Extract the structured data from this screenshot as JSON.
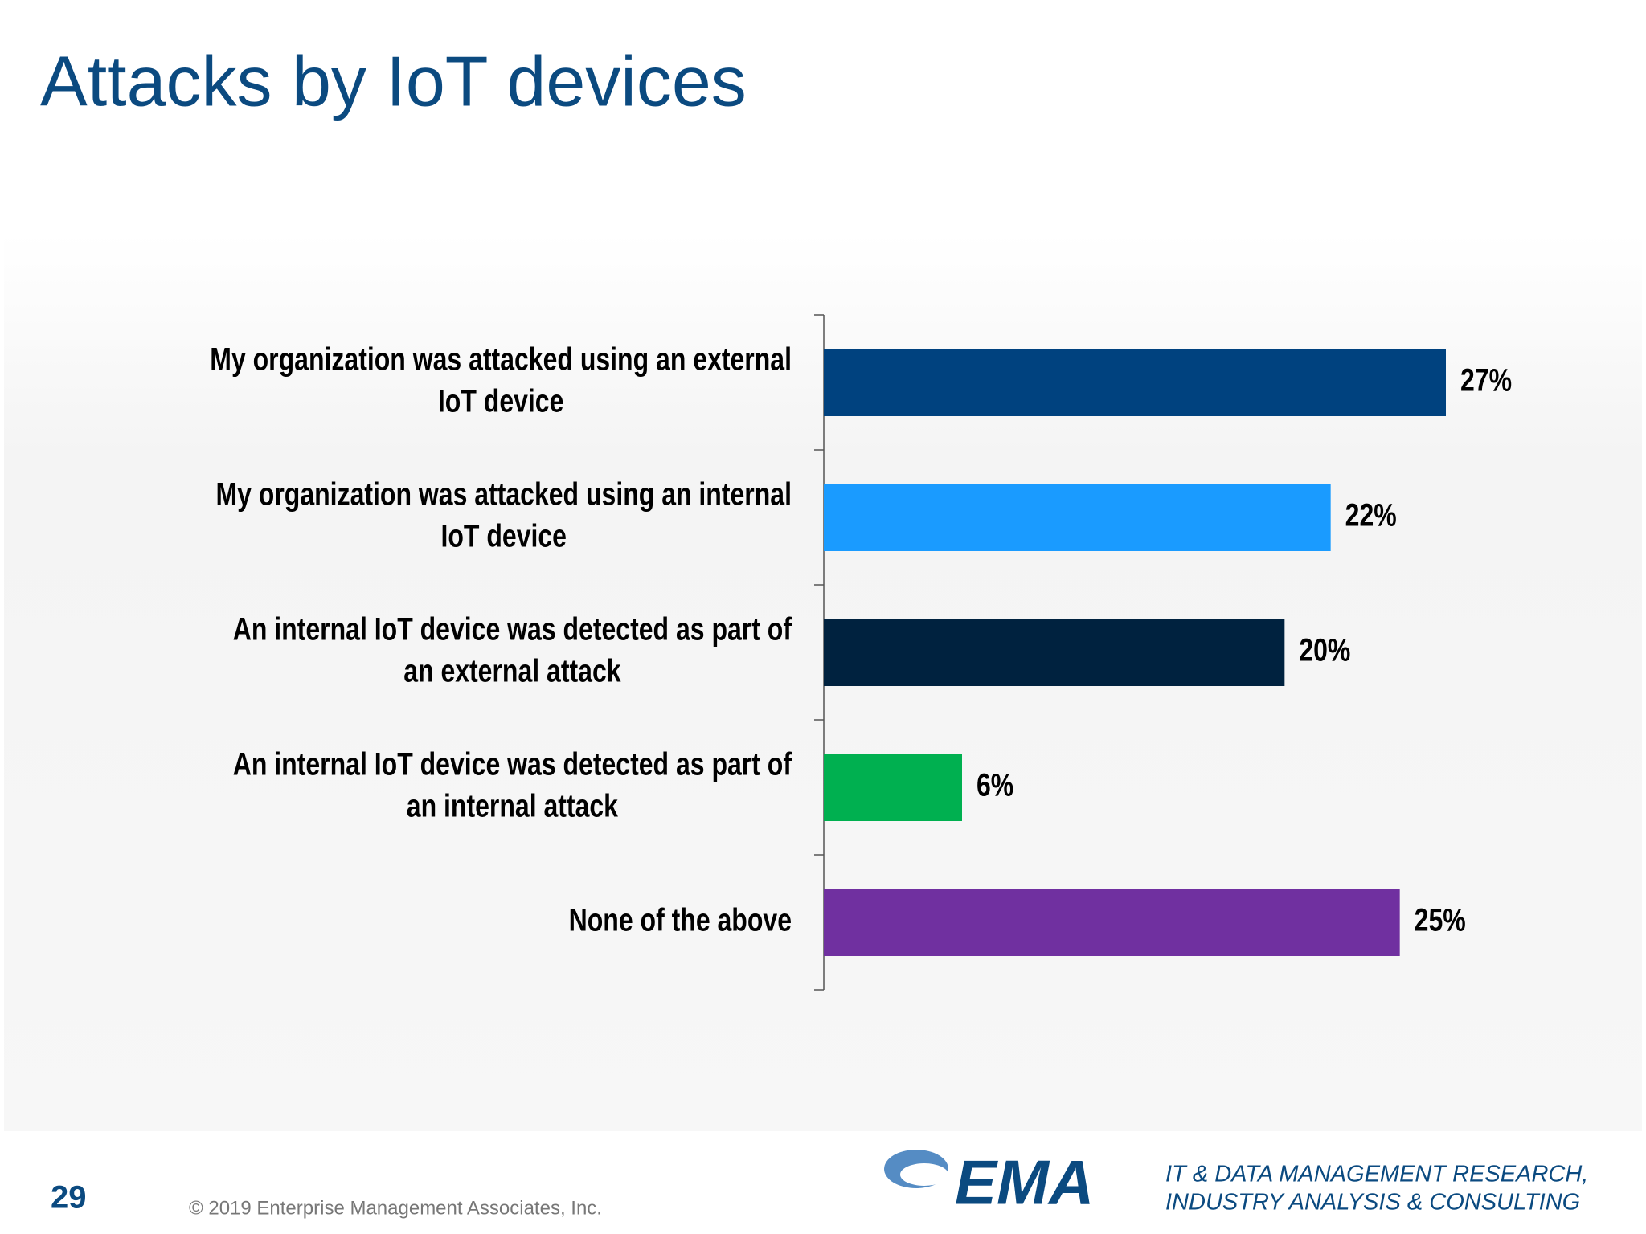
{
  "title": "Attacks by IoT devices",
  "chart_data": {
    "type": "hbar",
    "categories": [
      [
        "My organization was attacked using an external",
        "IoT device"
      ],
      [
        "My organization was attacked using an internal",
        "IoT device"
      ],
      [
        "An internal IoT device was detected as part  of",
        "an external attack"
      ],
      [
        "An internal IoT device was detected as part  of",
        "an internal attack"
      ],
      [
        "None of the above"
      ]
    ],
    "values": [
      27,
      22,
      20,
      6,
      25
    ],
    "value_labels": [
      "27%",
      "22%",
      "20%",
      "6%",
      "25%"
    ],
    "colors": [
      "#00427f",
      "#1a9bff",
      "#00223f",
      "#00b050",
      "#7030a0"
    ],
    "xlim": [
      0,
      30
    ]
  },
  "footer": {
    "page_number": "29",
    "copyright": "© 2019 Enterprise Management Associates, Inc.",
    "logo": "EMA",
    "tagline": [
      "IT & DATA MANAGEMENT RESEARCH,",
      "INDUSTRY ANALYSIS & CONSULTING"
    ]
  }
}
